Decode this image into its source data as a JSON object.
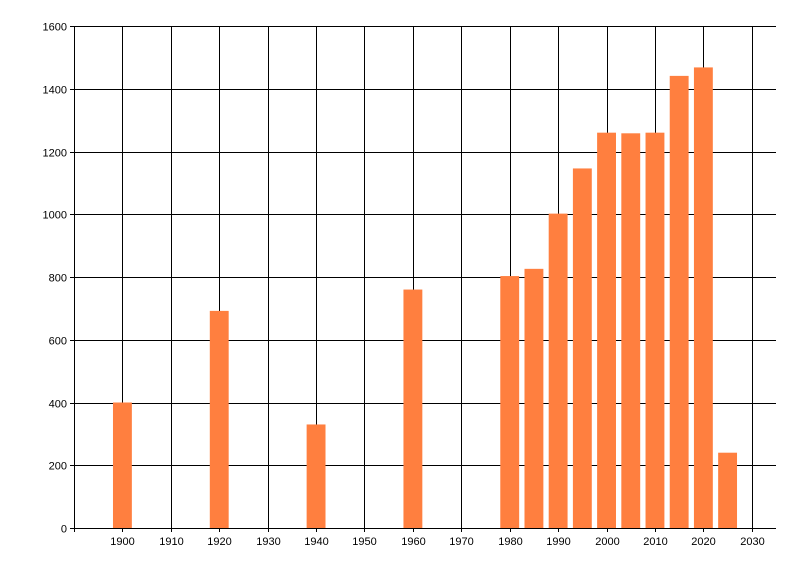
{
  "chart_data": {
    "type": "bar",
    "x": [
      1900,
      1920,
      1940,
      1960,
      1980,
      1985,
      1990,
      1995,
      2000,
      2005,
      2010,
      2015,
      2020,
      2025
    ],
    "values": [
      400,
      692,
      330,
      760,
      803,
      826,
      1002,
      1146,
      1260,
      1258,
      1260,
      1441,
      1468,
      240
    ],
    "xticks": [
      1900,
      1910,
      1920,
      1930,
      1940,
      1950,
      1960,
      1970,
      1980,
      1990,
      2000,
      2010,
      2020,
      2030
    ],
    "yticks": [
      0,
      200,
      400,
      600,
      800,
      1000,
      1200,
      1400,
      1600
    ],
    "xlim": [
      1890,
      2035
    ],
    "ylim": [
      0,
      1600
    ],
    "grid": true,
    "legend": "none",
    "bar_color": "#ff7f3f",
    "grid_color": "#000000",
    "title": "",
    "xlabel": "",
    "ylabel": ""
  }
}
